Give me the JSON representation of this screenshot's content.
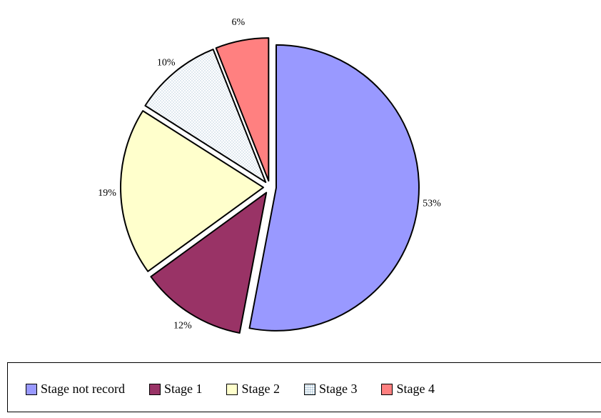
{
  "chart_data": {
    "type": "pie",
    "categories": [
      "Stage not record",
      "Stage 1",
      "Stage 2",
      "Stage 3",
      "Stage 4"
    ],
    "values": [
      53,
      12,
      19,
      10,
      6
    ],
    "value_labels": [
      "53%",
      "12%",
      "19%",
      "10%",
      "6%"
    ],
    "colors": [
      "#9999ff",
      "#993366",
      "#ffffcc",
      "#dfeaf2",
      "#ff8080"
    ],
    "patterns": [
      "solid",
      "solid",
      "solid",
      "dotted",
      "solid"
    ],
    "exploded": true,
    "legend_position": "bottom",
    "title": ""
  }
}
